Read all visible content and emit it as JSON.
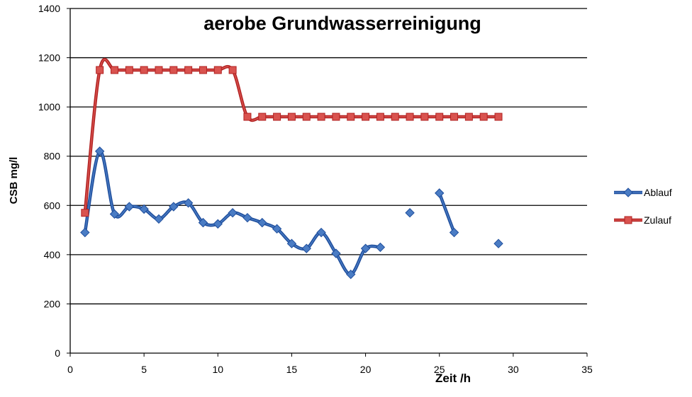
{
  "chart_data": {
    "type": "line",
    "title": "aerobe  Grundwasserreinigung",
    "xlabel": "Zeit /h",
    "ylabel": "CSB mg/l",
    "xlim": [
      0,
      35
    ],
    "ylim": [
      0,
      1400
    ],
    "xticks": [
      0,
      5,
      10,
      15,
      20,
      25,
      30,
      35
    ],
    "yticks": [
      0,
      200,
      400,
      600,
      800,
      1000,
      1200,
      1400
    ],
    "grid": "horizontal",
    "legend_position": "right",
    "x": [
      1,
      2,
      3,
      4,
      5,
      6,
      7,
      8,
      9,
      10,
      11,
      12,
      13,
      14,
      15,
      16,
      17,
      18,
      19,
      20,
      21,
      22,
      23,
      24,
      25,
      26,
      27,
      28,
      29
    ],
    "series": [
      {
        "name": "Ablauf",
        "color": "#4a7cc4",
        "line_color": "#1f4e9c",
        "marker": "diamond",
        "values": [
          490,
          820,
          565,
          595,
          585,
          545,
          595,
          610,
          530,
          525,
          570,
          550,
          530,
          505,
          445,
          425,
          490,
          405,
          320,
          425,
          430,
          null,
          570,
          null,
          650,
          490,
          null,
          null,
          445
        ]
      },
      {
        "name": "Zulauf",
        "color": "#d9534f",
        "line_color": "#b22222",
        "marker": "square",
        "values": [
          570,
          1150,
          1150,
          1150,
          1150,
          1150,
          1150,
          1150,
          1150,
          1150,
          1150,
          960,
          960,
          960,
          960,
          960,
          960,
          960,
          960,
          960,
          960,
          960,
          960,
          960,
          960,
          960,
          960,
          960,
          960
        ]
      }
    ]
  }
}
